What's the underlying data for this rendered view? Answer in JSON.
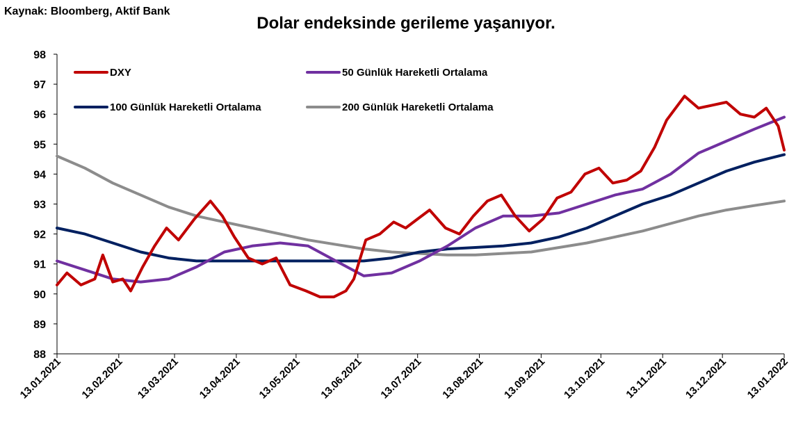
{
  "header": {
    "source": "Kaynak: Bloomberg, Aktif Bank",
    "title": "Dolar endeksinde gerileme yaşanıyor."
  },
  "chart_data": {
    "type": "line",
    "title": "Dolar endeksinde gerileme yaşanıyor.",
    "xlabel": "",
    "ylabel": "",
    "ylim": [
      88,
      98
    ],
    "yticks": [
      88,
      89,
      90,
      91,
      92,
      93,
      94,
      95,
      96,
      97,
      98
    ],
    "x_tick_labels": [
      "13.01.2021",
      "13.02.2021",
      "13.03.2021",
      "13.04.2021",
      "13.05.2021",
      "13.06.2021",
      "13.07.2021",
      "13.08.2021",
      "13.09.2021",
      "13.10.2021",
      "13.11.2021",
      "13.12.2021",
      "13.01.2022"
    ],
    "legend_position": "top-left",
    "grid": false,
    "series": [
      {
        "name": "DXY",
        "color": "#C00000",
        "x": [
          "2021-01-13",
          "2021-01-18",
          "2021-01-25",
          "2021-02-01",
          "2021-02-05",
          "2021-02-10",
          "2021-02-15",
          "2021-02-19",
          "2021-02-25",
          "2021-03-03",
          "2021-03-09",
          "2021-03-15",
          "2021-03-23",
          "2021-03-31",
          "2021-04-06",
          "2021-04-12",
          "2021-04-19",
          "2021-04-26",
          "2021-05-03",
          "2021-05-10",
          "2021-05-18",
          "2021-05-25",
          "2021-06-01",
          "2021-06-07",
          "2021-06-11",
          "2021-06-17",
          "2021-06-24",
          "2021-07-01",
          "2021-07-07",
          "2021-07-13",
          "2021-07-19",
          "2021-07-27",
          "2021-08-03",
          "2021-08-10",
          "2021-08-17",
          "2021-08-24",
          "2021-08-31",
          "2021-09-07",
          "2021-09-14",
          "2021-09-21",
          "2021-09-28",
          "2021-10-05",
          "2021-10-12",
          "2021-10-19",
          "2021-10-26",
          "2021-11-02",
          "2021-11-09",
          "2021-11-15",
          "2021-11-24",
          "2021-12-01",
          "2021-12-08",
          "2021-12-15",
          "2021-12-22",
          "2021-12-29",
          "2022-01-04",
          "2022-01-10",
          "2022-01-13"
        ],
        "values": [
          90.3,
          90.7,
          90.3,
          90.5,
          91.3,
          90.4,
          90.5,
          90.1,
          90.9,
          91.6,
          92.2,
          91.8,
          92.5,
          93.1,
          92.6,
          91.9,
          91.2,
          91.0,
          91.2,
          90.3,
          90.1,
          89.9,
          89.9,
          90.1,
          90.5,
          91.8,
          92.0,
          92.4,
          92.2,
          92.5,
          92.8,
          92.2,
          92.0,
          92.6,
          93.1,
          93.3,
          92.6,
          92.1,
          92.5,
          93.2,
          93.4,
          94.0,
          94.2,
          93.7,
          93.8,
          94.1,
          94.9,
          95.8,
          96.6,
          96.2,
          96.3,
          96.4,
          96.0,
          95.9,
          96.2,
          95.6,
          94.8
        ]
      },
      {
        "name": "50 Günlük Hareketli Ortalama",
        "color": "#7030A0",
        "x": [
          "2021-01-13",
          "2021-01-27",
          "2021-02-10",
          "2021-02-24",
          "2021-03-10",
          "2021-03-24",
          "2021-04-07",
          "2021-04-21",
          "2021-05-05",
          "2021-05-19",
          "2021-06-02",
          "2021-06-16",
          "2021-06-30",
          "2021-07-14",
          "2021-07-28",
          "2021-08-11",
          "2021-08-25",
          "2021-09-08",
          "2021-09-22",
          "2021-10-06",
          "2021-10-20",
          "2021-11-03",
          "2021-11-17",
          "2021-12-01",
          "2021-12-15",
          "2021-12-29",
          "2022-01-13"
        ],
        "values": [
          91.1,
          90.8,
          90.5,
          90.4,
          90.5,
          90.9,
          91.4,
          91.6,
          91.7,
          91.6,
          91.1,
          90.6,
          90.7,
          91.1,
          91.6,
          92.2,
          92.6,
          92.6,
          92.7,
          93.0,
          93.3,
          93.5,
          94.0,
          94.7,
          95.1,
          95.5,
          95.9
        ]
      },
      {
        "name": "100 Günlük Hareketli Ortalama",
        "color": "#002060",
        "x": [
          "2021-01-13",
          "2021-01-27",
          "2021-02-10",
          "2021-02-24",
          "2021-03-10",
          "2021-03-24",
          "2021-04-07",
          "2021-04-21",
          "2021-05-05",
          "2021-05-19",
          "2021-06-02",
          "2021-06-16",
          "2021-06-30",
          "2021-07-14",
          "2021-07-28",
          "2021-08-11",
          "2021-08-25",
          "2021-09-08",
          "2021-09-22",
          "2021-10-06",
          "2021-10-20",
          "2021-11-03",
          "2021-11-17",
          "2021-12-01",
          "2021-12-15",
          "2021-12-29",
          "2022-01-13"
        ],
        "values": [
          92.2,
          92.0,
          91.7,
          91.4,
          91.2,
          91.1,
          91.1,
          91.1,
          91.1,
          91.1,
          91.1,
          91.1,
          91.2,
          91.4,
          91.5,
          91.55,
          91.6,
          91.7,
          91.9,
          92.2,
          92.6,
          93.0,
          93.3,
          93.7,
          94.1,
          94.4,
          94.65
        ]
      },
      {
        "name": "200 Günlük Hareketli Ortalama",
        "color": "#8C8C8C",
        "x": [
          "2021-01-13",
          "2021-01-27",
          "2021-02-10",
          "2021-02-24",
          "2021-03-10",
          "2021-03-24",
          "2021-04-07",
          "2021-04-21",
          "2021-05-05",
          "2021-05-19",
          "2021-06-02",
          "2021-06-16",
          "2021-06-30",
          "2021-07-14",
          "2021-07-28",
          "2021-08-11",
          "2021-08-25",
          "2021-09-08",
          "2021-09-22",
          "2021-10-06",
          "2021-10-20",
          "2021-11-03",
          "2021-11-17",
          "2021-12-01",
          "2021-12-15",
          "2021-12-29",
          "2022-01-13"
        ],
        "values": [
          94.6,
          94.2,
          93.7,
          93.3,
          92.9,
          92.6,
          92.4,
          92.2,
          92.0,
          91.8,
          91.65,
          91.5,
          91.4,
          91.35,
          91.3,
          91.3,
          91.35,
          91.4,
          91.55,
          91.7,
          91.9,
          92.1,
          92.35,
          92.6,
          92.8,
          92.95,
          93.1
        ]
      }
    ]
  }
}
